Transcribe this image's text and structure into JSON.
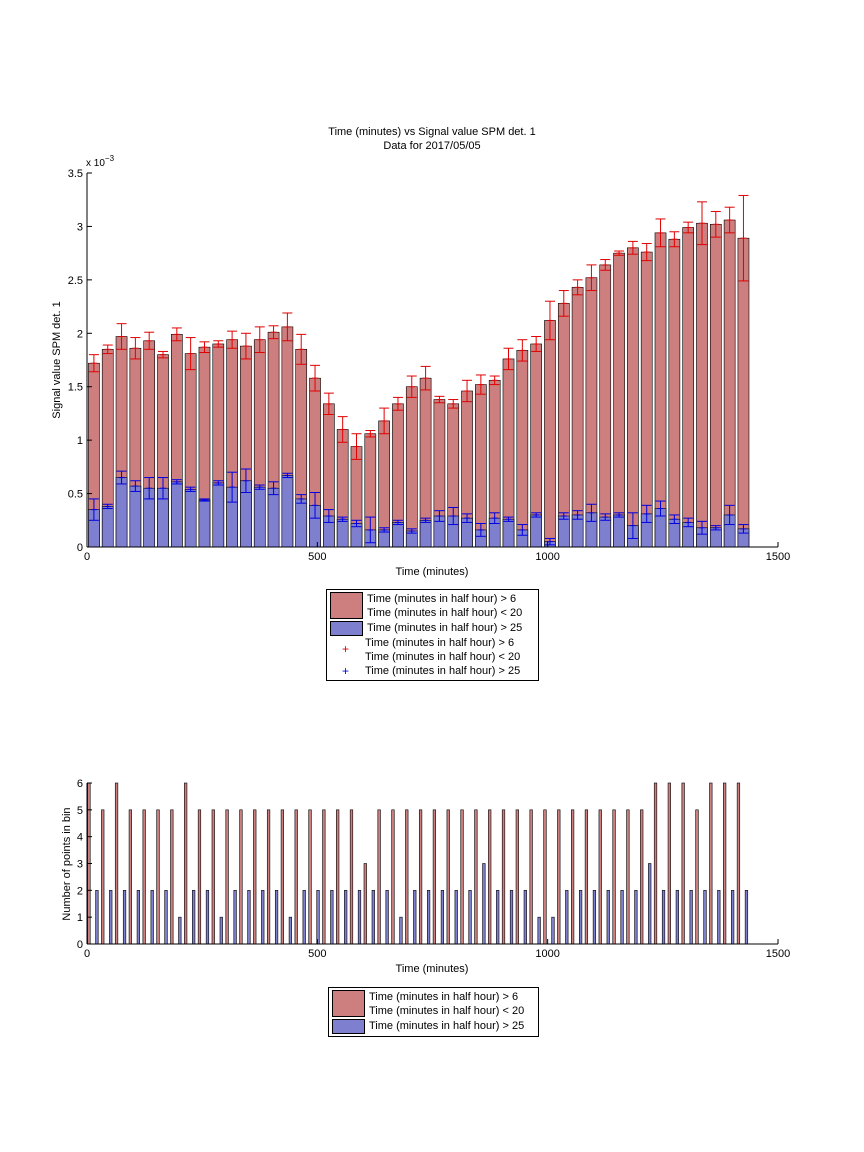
{
  "colors": {
    "red": "#cd7f7f",
    "blue": "#7f7fd0",
    "red_err": "#e00000",
    "blue_err": "#0000e0"
  },
  "figure": {
    "legend_entries": [
      "Time (minutes in half hour) > 6\nTime (minutes in half hour) < 20",
      "Time (minutes in half hour) > 25",
      "Time (minutes in half hour) > 6\nTime (minutes in half hour) < 20",
      "Time (minutes in half hour) > 25"
    ]
  },
  "chart_data": [
    {
      "type": "bar",
      "title": "Time (minutes) vs Signal value SPM det. 1",
      "subtitle": "Data for 2017/05/05",
      "xlabel": "Time (minutes)",
      "ylabel": "Signal value SPM det. 1",
      "y_exponent": "x 10",
      "y_exponent_power": "−3",
      "xlim": [
        0,
        1500
      ],
      "ylim": [
        0,
        3.5
      ],
      "xticks": [
        0,
        500,
        1000,
        1500
      ],
      "yticks": [
        0,
        0.5,
        1,
        1.5,
        2,
        2.5,
        3,
        3.5
      ],
      "y_unit_scale": "1e-3",
      "x": [
        15,
        45,
        75,
        105,
        135,
        165,
        195,
        225,
        255,
        285,
        315,
        345,
        375,
        405,
        435,
        465,
        495,
        525,
        555,
        585,
        615,
        645,
        675,
        705,
        735,
        765,
        795,
        825,
        855,
        885,
        915,
        945,
        975,
        1005,
        1035,
        1065,
        1095,
        1125,
        1155,
        1185,
        1215,
        1245,
        1275,
        1305,
        1335,
        1365,
        1395,
        1425
      ],
      "series": [
        {
          "name": "Time (minutes in half hour) > 6\nTime (minutes in half hour) < 20",
          "values": [
            1.72,
            1.85,
            1.97,
            1.86,
            1.93,
            1.8,
            1.99,
            1.81,
            1.87,
            1.9,
            1.94,
            1.88,
            1.94,
            2.01,
            2.06,
            1.85,
            1.58,
            1.34,
            1.1,
            0.94,
            1.06,
            1.18,
            1.34,
            1.5,
            1.58,
            1.38,
            1.34,
            1.46,
            1.52,
            1.56,
            1.76,
            1.84,
            1.9,
            2.12,
            2.28,
            2.43,
            2.52,
            2.64,
            2.75,
            2.8,
            2.76,
            2.94,
            2.88,
            2.99,
            3.03,
            3.02,
            3.06,
            2.89
          ],
          "errors": [
            0.08,
            0.04,
            0.12,
            0.1,
            0.08,
            0.03,
            0.06,
            0.15,
            0.05,
            0.03,
            0.08,
            0.12,
            0.12,
            0.06,
            0.13,
            0.14,
            0.12,
            0.1,
            0.12,
            0.12,
            0.03,
            0.12,
            0.06,
            0.1,
            0.11,
            0.03,
            0.04,
            0.1,
            0.09,
            0.04,
            0.1,
            0.1,
            0.07,
            0.18,
            0.12,
            0.07,
            0.12,
            0.05,
            0.02,
            0.06,
            0.08,
            0.13,
            0.07,
            0.05,
            0.2,
            0.12,
            0.12,
            0.4
          ]
        },
        {
          "name": "Time (minutes in half hour) > 25",
          "values": [
            0.35,
            0.38,
            0.65,
            0.57,
            0.55,
            0.55,
            0.61,
            0.54,
            0.44,
            0.6,
            0.56,
            0.62,
            0.56,
            0.55,
            0.67,
            0.45,
            0.39,
            0.29,
            0.26,
            0.22,
            0.16,
            0.16,
            0.23,
            0.15,
            0.25,
            0.29,
            0.29,
            0.27,
            0.16,
            0.27,
            0.26,
            0.16,
            0.3,
            0.05,
            0.29,
            0.3,
            0.32,
            0.28,
            0.3,
            0.2,
            0.31,
            0.36,
            0.26,
            0.23,
            0.18,
            0.18,
            0.3,
            0.17
          ],
          "errors": [
            0.1,
            0.02,
            0.06,
            0.05,
            0.1,
            0.1,
            0.02,
            0.02,
            0.01,
            0.02,
            0.14,
            0.11,
            0.02,
            0.06,
            0.02,
            0.04,
            0.12,
            0.06,
            0.02,
            0.03,
            0.12,
            0.02,
            0.02,
            0.02,
            0.02,
            0.05,
            0.08,
            0.04,
            0.06,
            0.05,
            0.02,
            0.05,
            0.02,
            0.03,
            0.03,
            0.04,
            0.08,
            0.03,
            0.02,
            0.12,
            0.08,
            0.07,
            0.04,
            0.04,
            0.06,
            0.02,
            0.09,
            0.04
          ]
        }
      ]
    },
    {
      "type": "bar",
      "title": "",
      "xlabel": "Time (minutes)",
      "ylabel": "Number of points in bin",
      "xlim": [
        0,
        1500
      ],
      "ylim": [
        0,
        6
      ],
      "xticks": [
        0,
        500,
        1000,
        1500
      ],
      "yticks": [
        0,
        1,
        2,
        3,
        4,
        5,
        6
      ],
      "x": [
        15,
        45,
        75,
        105,
        135,
        165,
        195,
        225,
        255,
        285,
        315,
        345,
        375,
        405,
        435,
        465,
        495,
        525,
        555,
        585,
        615,
        645,
        675,
        705,
        735,
        765,
        795,
        825,
        855,
        885,
        915,
        945,
        975,
        1005,
        1035,
        1065,
        1095,
        1125,
        1155,
        1185,
        1215,
        1245,
        1275,
        1305,
        1335,
        1365,
        1395,
        1425
      ],
      "series": [
        {
          "name": "Time (minutes in half hour) > 6\nTime (minutes in half hour) < 20",
          "values": [
            6,
            5,
            6,
            5,
            5,
            5,
            5,
            6,
            5,
            5,
            5,
            5,
            5,
            5,
            5,
            5,
            5,
            5,
            5,
            5,
            3,
            5,
            5,
            5,
            5,
            5,
            5,
            5,
            5,
            5,
            5,
            5,
            5,
            5,
            5,
            5,
            5,
            5,
            5,
            5,
            5,
            6,
            6,
            6,
            5,
            6,
            6,
            6
          ]
        },
        {
          "name": "Time (minutes in half hour) > 25",
          "values": [
            2,
            2,
            2,
            2,
            2,
            2,
            1,
            2,
            2,
            1,
            2,
            2,
            2,
            2,
            1,
            2,
            2,
            2,
            2,
            2,
            2,
            2,
            1,
            2,
            2,
            2,
            2,
            2,
            3,
            2,
            2,
            2,
            1,
            1,
            2,
            2,
            2,
            2,
            2,
            2,
            3,
            2,
            2,
            2,
            2,
            2,
            2,
            2
          ]
        }
      ]
    }
  ]
}
